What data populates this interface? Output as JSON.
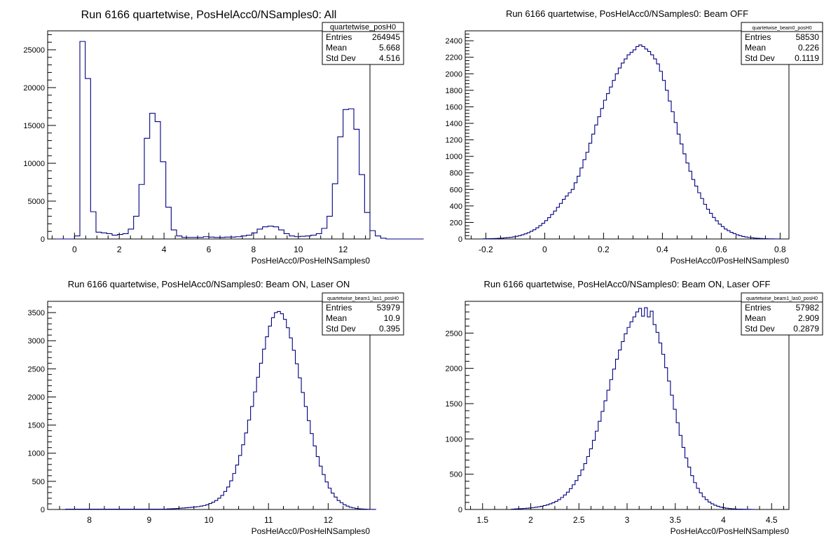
{
  "chart_data": [
    {
      "type": "histogram",
      "title": "Run 6166 quartetwise, PosHelAcc0/NSamples0: All",
      "xlabel": "PosHelAcc0/PosHelNSamples0",
      "ylabel": "",
      "xlim": [
        -1.2,
        13.2
      ],
      "ylim": [
        0,
        27500
      ],
      "x_ticks": [
        0,
        2,
        4,
        6,
        8,
        10,
        12
      ],
      "y_ticks": [
        0,
        5000,
        10000,
        15000,
        20000,
        25000
      ],
      "color": "#000080",
      "bin_start": -1.2,
      "bin_width": 0.24,
      "values": [
        0,
        0,
        0,
        0,
        0,
        400,
        26100,
        21200,
        3600,
        900,
        800,
        700,
        500,
        600,
        700,
        1300,
        3000,
        7200,
        13300,
        16600,
        15500,
        10200,
        4200,
        1200,
        400,
        200,
        200,
        200,
        200,
        300,
        250,
        200,
        200,
        250,
        250,
        300,
        400,
        500,
        800,
        1300,
        1600,
        1700,
        1600,
        1200,
        700,
        400,
        300,
        350,
        400,
        500,
        700,
        1400,
        3000,
        7300,
        13500,
        17100,
        17200,
        14500,
        8500,
        3500,
        1100,
        400,
        100,
        0,
        0,
        0,
        0,
        0,
        0,
        0
      ],
      "stats": {
        "name": "quartetwise_posH0",
        "rows": [
          {
            "label": "Entries",
            "value": "264945"
          },
          {
            "label": "Mean",
            "value": "5.668"
          },
          {
            "label": "Std Dev",
            "value": "4.516"
          }
        ]
      }
    },
    {
      "type": "histogram",
      "title": "Run 6166 quartetwise, PosHelAcc0/NSamples0: Beam OFF",
      "xlabel": "PosHelAcc0/PosHelNSamples0",
      "ylabel": "",
      "xlim": [
        -0.27,
        0.83
      ],
      "ylim": [
        0,
        2520
      ],
      "x_ticks": [
        -0.2,
        0,
        0.2,
        0.4,
        0.6,
        0.8
      ],
      "y_ticks": [
        0,
        200,
        400,
        600,
        800,
        1000,
        1200,
        1400,
        1600,
        1800,
        2000,
        2200,
        2400
      ],
      "color": "#000080",
      "bin_start": -0.21,
      "bin_width": 0.01,
      "values": [
        2,
        3,
        4,
        5,
        6,
        8,
        10,
        13,
        16,
        20,
        25,
        32,
        40,
        50,
        62,
        76,
        93,
        112,
        135,
        162,
        190,
        222,
        258,
        296,
        338,
        383,
        430,
        480,
        520,
        560,
        600,
        680,
        760,
        860,
        960,
        1050,
        1160,
        1270,
        1380,
        1480,
        1580,
        1680,
        1760,
        1840,
        1920,
        2000,
        2070,
        2130,
        2180,
        2230,
        2260,
        2290,
        2330,
        2350,
        2330,
        2300,
        2270,
        2230,
        2180,
        2120,
        2030,
        1920,
        1800,
        1670,
        1540,
        1410,
        1270,
        1150,
        1030,
        920,
        820,
        720,
        640,
        560,
        490,
        420,
        360,
        310,
        260,
        220,
        180,
        150,
        120,
        100,
        80,
        65,
        50,
        40,
        30,
        24,
        18,
        14,
        10,
        8,
        6,
        4,
        3,
        2,
        2,
        1,
        1
      ],
      "stats": {
        "name": "quartetwise_beam0_posH0",
        "rows": [
          {
            "label": "Entries",
            "value": "58530"
          },
          {
            "label": "Mean",
            "value": "0.226"
          },
          {
            "label": "Std Dev",
            "value": "0.1119"
          }
        ]
      }
    },
    {
      "type": "histogram",
      "title": "Run 6166 quartetwise, PosHelAcc0/NSamples0: Beam ON, Laser ON",
      "xlabel": "PosHelAcc0/PosHelNSamples0",
      "ylabel": "",
      "xlim": [
        7.3,
        12.7
      ],
      "ylim": [
        0,
        3700
      ],
      "x_ticks": [
        8,
        9,
        10,
        11,
        12
      ],
      "y_ticks": [
        0,
        500,
        1000,
        1500,
        2000,
        2500,
        3000,
        3500
      ],
      "color": "#000080",
      "bin_start": 7.6,
      "bin_width": 0.05,
      "values": [
        5,
        5,
        5,
        5,
        5,
        5,
        5,
        5,
        5,
        5,
        5,
        5,
        5,
        5,
        5,
        5,
        5,
        5,
        5,
        5,
        5,
        5,
        5,
        5,
        5,
        5,
        5,
        5,
        5,
        5,
        5,
        5,
        5,
        5,
        10,
        12,
        15,
        18,
        22,
        26,
        30,
        35,
        40,
        45,
        50,
        60,
        70,
        85,
        105,
        130,
        160,
        200,
        250,
        320,
        400,
        510,
        640,
        790,
        960,
        1150,
        1360,
        1590,
        1830,
        2090,
        2350,
        2600,
        2850,
        3070,
        3260,
        3410,
        3500,
        3520,
        3480,
        3380,
        3230,
        3050,
        2830,
        2590,
        2340,
        2080,
        1830,
        1580,
        1350,
        1130,
        940,
        770,
        620,
        490,
        380,
        290,
        220,
        160,
        120,
        85,
        60,
        40,
        28,
        18,
        12,
        8,
        5,
        3,
        2,
        1
      ],
      "stats": {
        "name": "quartetwise_beam1_las1_posH0",
        "rows": [
          {
            "label": "Entries",
            "value": "53979"
          },
          {
            "label": "Mean",
            "value": "10.9"
          },
          {
            "label": "Std Dev",
            "value": "0.395"
          }
        ]
      }
    },
    {
      "type": "histogram",
      "title": "Run 6166 quartetwise, PosHelAcc0/NSamples0: Beam ON, Laser OFF",
      "xlabel": "PosHelAcc0/PosHelNSamples0",
      "ylabel": "",
      "xlim": [
        1.32,
        4.68
      ],
      "ylim": [
        0,
        2950
      ],
      "x_ticks": [
        1.5,
        2,
        2.5,
        3,
        3.5,
        4,
        4.5
      ],
      "y_ticks": [
        0,
        500,
        1000,
        1500,
        2000,
        2500
      ],
      "color": "#000080",
      "bin_start": 1.8,
      "bin_width": 0.03,
      "values": [
        5,
        8,
        10,
        12,
        15,
        18,
        22,
        26,
        32,
        38,
        45,
        55,
        65,
        80,
        95,
        115,
        140,
        170,
        205,
        245,
        295,
        350,
        410,
        480,
        560,
        650,
        750,
        860,
        980,
        1110,
        1250,
        1390,
        1540,
        1690,
        1840,
        1990,
        2130,
        2260,
        2380,
        2490,
        2580,
        2660,
        2730,
        2800,
        2850,
        2740,
        2860,
        2730,
        2810,
        2620,
        2510,
        2360,
        2200,
        2010,
        1820,
        1620,
        1420,
        1230,
        1050,
        880,
        730,
        600,
        480,
        380,
        300,
        235,
        180,
        140,
        105,
        80,
        60,
        45,
        33,
        24,
        18,
        13,
        9,
        7,
        5,
        4,
        3,
        2,
        2,
        1
      ],
      "stats": {
        "name": "quartetwise_beam1_las0_posH0",
        "rows": [
          {
            "label": "Entries",
            "value": "57982"
          },
          {
            "label": "Mean",
            "value": "2.909"
          },
          {
            "label": "Std Dev",
            "value": "0.2879"
          }
        ]
      }
    }
  ]
}
